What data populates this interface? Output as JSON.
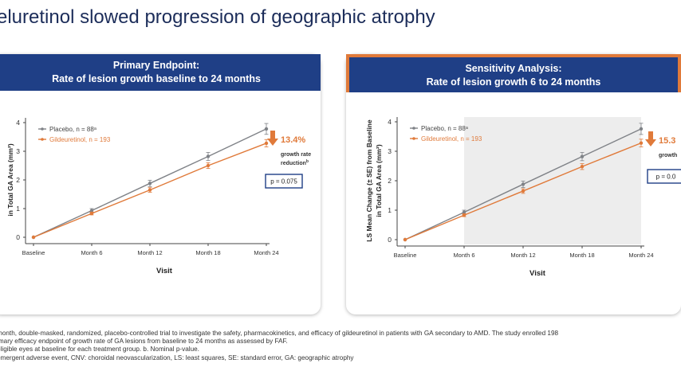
{
  "title": "eluretinol slowed progression of geographic atrophy",
  "colors": {
    "placebo": "#7f8287",
    "drug": "#e07a3a",
    "header": "#1f3f86",
    "accent": "#e07a3a",
    "shade": "#ededed"
  },
  "footnotes": [
    "month, double-masked, randomized, placebo-controlled trial to investigate the safety, pharmacokinetics, and efficacy of gildeuretinol in patients with GA secondary to AMD. The study enrolled 198",
    "imary efficacy endpoint of growth rate of GA lesions from baseline to 24 months as assessed by FAF.",
    "eligible eyes at baseline for each treatment group. b. Nominal p-value.",
    "emergent adverse event, CNV: choroidal neovascularization, LS: least squares, SE: standard error, GA: geographic atrophy"
  ],
  "chart_data": [
    {
      "type": "line",
      "panel_title_1": "Primary Endpoint:",
      "panel_title_2": "Rate of lesion growth baseline to 24 months",
      "ylabel_line1": "",
      "ylabel_line2": "in Total GA Area (mm²)",
      "xlabel": "Visit",
      "categories": [
        "Baseline",
        "Month 6",
        "Month 12",
        "Month 18",
        "Month 24"
      ],
      "y_ticks": [
        "0",
        "1",
        "2",
        "3",
        "4"
      ],
      "ylim": [
        0,
        4
      ],
      "shaded_from_index": 4,
      "series": [
        {
          "name": "Placebo",
          "n_text": ", n = 88ᵃ",
          "values": [
            0,
            0.93,
            1.88,
            2.82,
            3.78
          ],
          "errors": [
            0,
            0.07,
            0.11,
            0.14,
            0.19
          ]
        },
        {
          "name": "Gildeuretinol",
          "n_text": ", n = 193",
          "values": [
            0,
            0.83,
            1.65,
            2.5,
            3.28
          ],
          "errors": [
            0,
            0.05,
            0.08,
            0.1,
            0.13
          ]
        }
      ],
      "reduction_pct": "13.4%",
      "reduction_label_1": "growth rate",
      "reduction_label_2": "reduction",
      "reduction_sup": "b",
      "p_value": "p = 0.075"
    },
    {
      "type": "line",
      "panel_title_1": "Sensitivity Analysis:",
      "panel_title_2": "Rate of lesion growth 6 to 24 months",
      "ylabel_line1": "LS Mean Change (± SE) from Baseline",
      "ylabel_line2": "in Total GA Area (mm²)",
      "xlabel": "Visit",
      "categories": [
        "Baseline",
        "Month 6",
        "Month 12",
        "Month 18",
        "Month 24"
      ],
      "y_ticks": [
        "0",
        "1",
        "2",
        "3",
        "4"
      ],
      "ylim": [
        0,
        4
      ],
      "shaded_from_index": 1,
      "series": [
        {
          "name": "Placebo",
          "n_text": ", n = 88ᵃ",
          "values": [
            0,
            0.93,
            1.88,
            2.82,
            3.76
          ],
          "errors": [
            0,
            0.07,
            0.11,
            0.14,
            0.19
          ]
        },
        {
          "name": "Gildeuretinol",
          "n_text": ", n = 193",
          "values": [
            0,
            0.83,
            1.65,
            2.48,
            3.28
          ],
          "errors": [
            0,
            0.05,
            0.08,
            0.1,
            0.13
          ]
        }
      ],
      "reduction_pct": "15.3",
      "reduction_label_1": "growth",
      "reduction_label_2": "",
      "reduction_sup": "",
      "p_value": "p = 0.0"
    }
  ]
}
